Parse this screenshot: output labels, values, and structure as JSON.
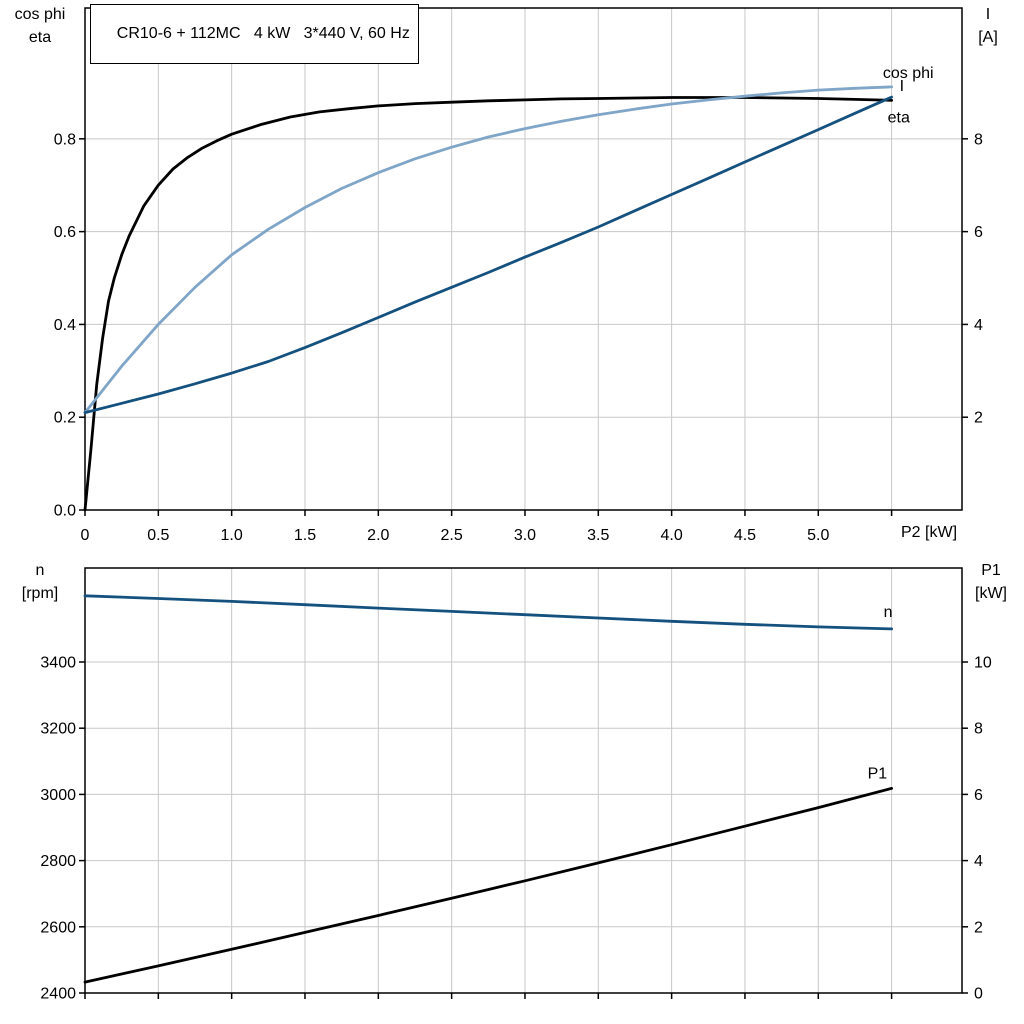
{
  "header": {
    "title": "CR10-6 + 112MC   4 kW   3*440 V, 60 Hz"
  },
  "colors": {
    "black": "#000000",
    "light_blue": "#7fa5c8",
    "dark_blue": "#14517f",
    "grid": "#c8c8c8",
    "axis": "#000000",
    "background": "#ffffff"
  },
  "chart_data": [
    {
      "type": "line",
      "title": "CR10-6 + 112MC   4 kW   3*440 V, 60 Hz",
      "xlabel": "P2 [kW]",
      "grid": true,
      "x_axis": {
        "min": 0,
        "max": 5.98,
        "ticks": [
          0,
          0.5,
          1,
          1.5,
          2,
          2.5,
          3,
          3.5,
          4,
          4.5,
          5,
          5.5
        ],
        "tick_labels": [
          "0",
          "0.5",
          "1.0",
          "1.5",
          "2.0",
          "2.5",
          "3.0",
          "3.5",
          "4.0",
          "4.5",
          "5.0",
          ""
        ]
      },
      "left_axis": {
        "label_lines": [
          "cos phi",
          "eta"
        ],
        "min": 0,
        "max": 1.082,
        "ticks": [
          0,
          0.2,
          0.4,
          0.6,
          0.8
        ],
        "tick_labels": [
          "0.0",
          "0.2",
          "0.4",
          "0.6",
          "0.8"
        ]
      },
      "right_axis": {
        "label_lines": [
          "I",
          "[A]"
        ],
        "min": 0,
        "max": 10.82,
        "ticks": [
          2,
          4,
          6,
          8
        ],
        "tick_labels": [
          "2",
          "4",
          "6",
          "8"
        ]
      },
      "series": [
        {
          "name": "eta",
          "label": "eta",
          "axis": "left",
          "color_key": "black",
          "points": [
            [
              0,
              0
            ],
            [
              0.04,
              0.13
            ],
            [
              0.08,
              0.27
            ],
            [
              0.12,
              0.37
            ],
            [
              0.16,
              0.45
            ],
            [
              0.2,
              0.5
            ],
            [
              0.25,
              0.55
            ],
            [
              0.3,
              0.59
            ],
            [
              0.4,
              0.655
            ],
            [
              0.5,
              0.7
            ],
            [
              0.6,
              0.735
            ],
            [
              0.7,
              0.76
            ],
            [
              0.8,
              0.78
            ],
            [
              0.9,
              0.796
            ],
            [
              1.0,
              0.81
            ],
            [
              1.2,
              0.831
            ],
            [
              1.4,
              0.847
            ],
            [
              1.6,
              0.858
            ],
            [
              1.8,
              0.865
            ],
            [
              2.0,
              0.871
            ],
            [
              2.25,
              0.876
            ],
            [
              2.5,
              0.879
            ],
            [
              2.75,
              0.882
            ],
            [
              3.0,
              0.884
            ],
            [
              3.25,
              0.886
            ],
            [
              3.5,
              0.887
            ],
            [
              3.75,
              0.888
            ],
            [
              4.0,
              0.889
            ],
            [
              4.25,
              0.889
            ],
            [
              4.5,
              0.889
            ],
            [
              4.75,
              0.888
            ],
            [
              5.0,
              0.887
            ],
            [
              5.25,
              0.885
            ],
            [
              5.5,
              0.883
            ]
          ]
        },
        {
          "name": "cos-phi",
          "label": "cos phi",
          "axis": "left",
          "color_key": "light_blue",
          "points": [
            [
              0,
              0.21
            ],
            [
              0.25,
              0.31
            ],
            [
              0.5,
              0.4
            ],
            [
              0.75,
              0.48
            ],
            [
              1.0,
              0.55
            ],
            [
              1.25,
              0.605
            ],
            [
              1.5,
              0.652
            ],
            [
              1.75,
              0.693
            ],
            [
              2.0,
              0.727
            ],
            [
              2.25,
              0.757
            ],
            [
              2.5,
              0.782
            ],
            [
              2.75,
              0.804
            ],
            [
              3.0,
              0.822
            ],
            [
              3.25,
              0.838
            ],
            [
              3.5,
              0.852
            ],
            [
              3.75,
              0.864
            ],
            [
              4.0,
              0.875
            ],
            [
              4.25,
              0.884
            ],
            [
              4.5,
              0.892
            ],
            [
              4.75,
              0.899
            ],
            [
              5.0,
              0.905
            ],
            [
              5.25,
              0.909
            ],
            [
              5.5,
              0.912
            ]
          ]
        },
        {
          "name": "I",
          "label": "I",
          "axis": "right",
          "color_key": "dark_blue",
          "points": [
            [
              0,
              2.1
            ],
            [
              0.25,
              2.3
            ],
            [
              0.5,
              2.5
            ],
            [
              0.75,
              2.72
            ],
            [
              1.0,
              2.95
            ],
            [
              1.25,
              3.2
            ],
            [
              1.5,
              3.5
            ],
            [
              1.75,
              3.82
            ],
            [
              2.0,
              4.15
            ],
            [
              2.25,
              4.48
            ],
            [
              2.5,
              4.8
            ],
            [
              2.75,
              5.12
            ],
            [
              3.0,
              5.45
            ],
            [
              3.25,
              5.77
            ],
            [
              3.5,
              6.1
            ],
            [
              3.75,
              6.45
            ],
            [
              4.0,
              6.8
            ],
            [
              4.25,
              7.15
            ],
            [
              4.5,
              7.5
            ],
            [
              4.75,
              7.85
            ],
            [
              5.0,
              8.2
            ],
            [
              5.25,
              8.55
            ],
            [
              5.5,
              8.9
            ]
          ]
        }
      ]
    },
    {
      "type": "line",
      "title": "",
      "xlabel": "",
      "grid": true,
      "x_axis": {
        "min": 0,
        "max": 5.98,
        "ticks": [
          0,
          0.5,
          1,
          1.5,
          2,
          2.5,
          3,
          3.5,
          4,
          4.5,
          5,
          5.5
        ],
        "tick_labels": []
      },
      "left_axis": {
        "label_lines": [
          "n",
          "[rpm]"
        ],
        "min": 2400,
        "max": 3684,
        "ticks": [
          2400,
          2600,
          2800,
          3000,
          3200,
          3400
        ],
        "tick_labels": [
          "2400",
          "2600",
          "2800",
          "3000",
          "3200",
          "3400"
        ]
      },
      "right_axis": {
        "label_lines": [
          "P1",
          "[kW]"
        ],
        "min": 0,
        "max": 12.84,
        "ticks": [
          0,
          2,
          4,
          6,
          8,
          10
        ],
        "tick_labels": [
          "0",
          "2",
          "4",
          "6",
          "8",
          "10"
        ]
      },
      "series": [
        {
          "name": "n",
          "label": "n",
          "axis": "left",
          "color_key": "dark_blue",
          "points": [
            [
              0,
              3600
            ],
            [
              0.5,
              3592
            ],
            [
              1.0,
              3583
            ],
            [
              1.5,
              3573
            ],
            [
              2.0,
              3563
            ],
            [
              2.5,
              3553
            ],
            [
              3.0,
              3543
            ],
            [
              3.5,
              3533
            ],
            [
              4.0,
              3523
            ],
            [
              4.5,
              3514
            ],
            [
              5.0,
              3506
            ],
            [
              5.5,
              3500
            ]
          ]
        },
        {
          "name": "P1",
          "label": "P1",
          "axis": "right",
          "color_key": "black",
          "points": [
            [
              0,
              0.33
            ],
            [
              0.5,
              0.82
            ],
            [
              1.0,
              1.32
            ],
            [
              1.5,
              1.83
            ],
            [
              2.0,
              2.34
            ],
            [
              2.5,
              2.86
            ],
            [
              3.0,
              3.39
            ],
            [
              3.5,
              3.93
            ],
            [
              4.0,
              4.48
            ],
            [
              4.5,
              5.04
            ],
            [
              5.0,
              5.6
            ],
            [
              5.5,
              6.18
            ]
          ]
        }
      ]
    }
  ]
}
